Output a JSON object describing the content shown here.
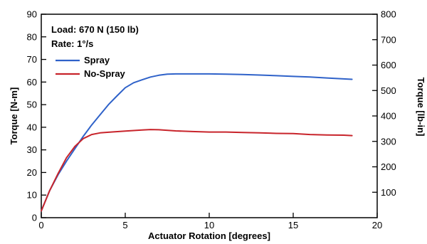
{
  "chart_data": {
    "type": "line",
    "xlabel": "Actuator Rotation [degrees]",
    "ylabel": "Torque [N-m]",
    "y2label": "Torque [lb-in]",
    "xlim": [
      0,
      20
    ],
    "ylim": [
      0,
      90
    ],
    "y2lim": [
      0,
      800
    ],
    "x_ticks": [
      0,
      5,
      10,
      15,
      20
    ],
    "y_ticks": [
      0,
      10,
      20,
      30,
      40,
      50,
      60,
      70,
      80,
      90
    ],
    "y2_ticks": [
      100,
      200,
      300,
      400,
      500,
      600,
      700,
      800
    ],
    "grid": false,
    "legend_position": "top-left",
    "annotations": [
      "Load: 670 N (150 lb)",
      "Rate: 1°/s"
    ],
    "series": [
      {
        "name": "Spray",
        "color": "#2f62c9",
        "x": [
          0,
          0.5,
          1,
          1.5,
          2,
          2.5,
          3,
          3.5,
          4,
          4.5,
          5,
          5.5,
          6,
          6.5,
          7,
          7.5,
          8,
          9,
          10,
          11,
          12,
          13,
          14,
          15,
          16,
          17,
          18,
          18.5
        ],
        "y": [
          3,
          12,
          19,
          25,
          30.5,
          36,
          41,
          45.5,
          50,
          53.8,
          57.5,
          59.7,
          61,
          62.2,
          63,
          63.5,
          63.6,
          63.6,
          63.6,
          63.5,
          63.3,
          63.1,
          62.8,
          62.5,
          62.2,
          61.8,
          61.4,
          61.2
        ]
      },
      {
        "name": "No-Spray",
        "color": "#c8242b",
        "x": [
          0,
          0.5,
          1,
          1.5,
          2,
          2.5,
          3,
          3.5,
          4,
          5,
          6,
          6.5,
          7,
          8,
          9,
          10,
          11,
          12,
          13,
          14,
          15,
          16,
          17,
          18,
          18.5
        ],
        "y": [
          3,
          12,
          19.5,
          26.5,
          31.5,
          35,
          36.8,
          37.5,
          37.8,
          38.3,
          38.8,
          39,
          38.9,
          38.4,
          38.1,
          37.9,
          37.9,
          37.7,
          37.5,
          37.3,
          37.2,
          36.8,
          36.6,
          36.5,
          36.3
        ]
      }
    ]
  }
}
